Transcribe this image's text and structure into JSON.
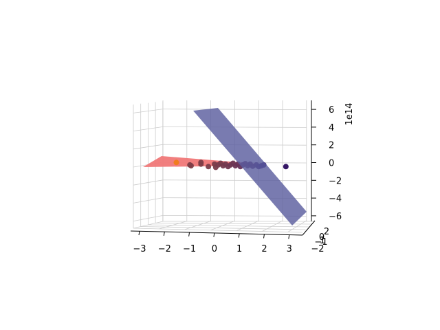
{
  "chart_data": {
    "type": "scatter",
    "projection": "3d",
    "grid": true,
    "x_ticks": [
      -3,
      -2,
      -1,
      0,
      1,
      2,
      3
    ],
    "y_ticks": [
      -2,
      -1,
      0,
      1,
      2
    ],
    "z_ticks": [
      -6,
      -4,
      -2,
      0,
      2,
      4,
      6
    ],
    "z_offset_label": "1e14",
    "xlim": [
      -3.3,
      3.3
    ],
    "ylim": [
      -2.2,
      2.2
    ],
    "zlim": [
      -7,
      7
    ],
    "surfaces": [
      {
        "color": "#f07878",
        "corners": [
          [
            -3.2,
            0,
            0
          ],
          [
            1.2,
            0,
            0
          ],
          [
            1.2,
            0,
            0.1
          ],
          [
            -3.2,
            0,
            0.6
          ]
        ]
      },
      {
        "color": "#5b5e9f",
        "corners": [
          [
            -1.1,
            0,
            6.5
          ],
          [
            -0.2,
            0,
            6.8
          ],
          [
            3.2,
            0,
            -6.0
          ],
          [
            2.6,
            0,
            -7.0
          ]
        ]
      }
    ],
    "points": [
      {
        "x": -1.55,
        "y": 0,
        "z": 0.1,
        "color": "#f07d1a"
      },
      {
        "x": -1.0,
        "y": 0,
        "z": -0.2,
        "color": "#7f3f48"
      },
      {
        "x": -0.95,
        "y": 0,
        "z": -0.3,
        "color": "#7f3f48"
      },
      {
        "x": -0.55,
        "y": 0,
        "z": -0.1,
        "color": "#7f3f48"
      },
      {
        "x": -0.55,
        "y": 0,
        "z": 0.1,
        "color": "#7f3f48"
      },
      {
        "x": -0.25,
        "y": 0,
        "z": -0.4,
        "color": "#7a3e4a"
      },
      {
        "x": 0.0,
        "y": 0,
        "z": -0.1,
        "color": "#793d4a"
      },
      {
        "x": 0.05,
        "y": 0,
        "z": -0.5,
        "color": "#793d4a"
      },
      {
        "x": 0.15,
        "y": 0,
        "z": -0.2,
        "color": "#773c4c"
      },
      {
        "x": 0.25,
        "y": 0,
        "z": 0.0,
        "color": "#763c4c"
      },
      {
        "x": 0.35,
        "y": 0,
        "z": -0.3,
        "color": "#743b4e"
      },
      {
        "x": 0.45,
        "y": 0,
        "z": -0.1,
        "color": "#733a4f"
      },
      {
        "x": 0.55,
        "y": 0,
        "z": -0.4,
        "color": "#713950"
      },
      {
        "x": 0.65,
        "y": 0,
        "z": -0.2,
        "color": "#6f3852"
      },
      {
        "x": 0.75,
        "y": 0,
        "z": 0.0,
        "color": "#6d3753"
      },
      {
        "x": 0.85,
        "y": 0,
        "z": -0.3,
        "color": "#6b3655"
      },
      {
        "x": 0.95,
        "y": 0,
        "z": -0.1,
        "color": "#683457"
      },
      {
        "x": 1.05,
        "y": 0,
        "z": -0.4,
        "color": "#65335a"
      },
      {
        "x": 1.15,
        "y": 0,
        "z": -0.2,
        "color": "#62315c"
      },
      {
        "x": 1.25,
        "y": 0,
        "z": -0.05,
        "color": "#5e2f5f"
      },
      {
        "x": 1.35,
        "y": 0,
        "z": -0.3,
        "color": "#5a2d61"
      },
      {
        "x": 1.45,
        "y": 0,
        "z": -0.1,
        "color": "#552a63"
      },
      {
        "x": 1.55,
        "y": 0,
        "z": -0.35,
        "color": "#4f2765"
      },
      {
        "x": 1.7,
        "y": 0,
        "z": -0.2,
        "color": "#472268"
      },
      {
        "x": 1.8,
        "y": 0,
        "z": -0.4,
        "color": "#3f1d6a"
      },
      {
        "x": 1.9,
        "y": 0,
        "z": -0.3,
        "color": "#361770"
      },
      {
        "x": 2.0,
        "y": 0,
        "z": -0.2,
        "color": "#2e1170"
      },
      {
        "x": 2.9,
        "y": 0,
        "z": -0.4,
        "color": "#2a0b5e"
      }
    ]
  }
}
